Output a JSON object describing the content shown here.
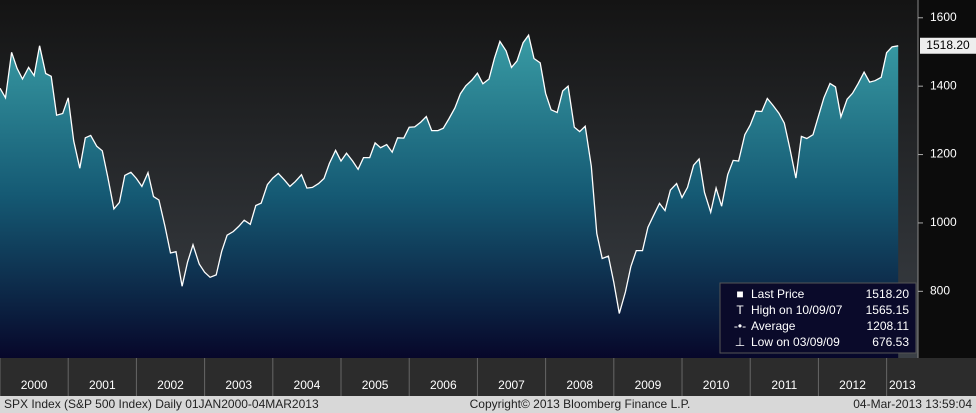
{
  "chart_data": {
    "type": "area",
    "footer": {
      "left": "SPX Index (S&P 500 Index)  Daily 01JAN2000-04MAR2013",
      "center": "Copyright© 2013 Bloomberg Finance L.P.",
      "right": "04-Mar-2013 13:59:04"
    },
    "stats": [
      {
        "label": "Last Price",
        "value": "1518.20"
      },
      {
        "label": "High on 10/09/07",
        "value": "1565.15"
      },
      {
        "label": "Average",
        "value": "1208.11"
      },
      {
        "label": "Low on 03/09/09",
        "value": "676.53"
      }
    ],
    "xlim": [
      2000,
      2013.46
    ],
    "xticks": [
      2000,
      2001,
      2002,
      2003,
      2004,
      2005,
      2006,
      2007,
      2008,
      2009,
      2010,
      2011,
      2012,
      2013
    ],
    "ylim": [
      605,
      1652
    ],
    "yticks": [
      800,
      1000,
      1200,
      1400,
      1600
    ],
    "grid": false,
    "series": [
      {
        "color": "#ffffff",
        "x": [
          2000,
          2000.08,
          2000.17,
          2000.25,
          2000.33,
          2000.42,
          2000.5,
          2000.58,
          2000.67,
          2000.75,
          2000.83,
          2000.92,
          2001,
          2001.08,
          2001.17,
          2001.25,
          2001.33,
          2001.42,
          2001.5,
          2001.58,
          2001.67,
          2001.75,
          2001.83,
          2001.92,
          2002,
          2002.08,
          2002.17,
          2002.25,
          2002.33,
          2002.42,
          2002.5,
          2002.58,
          2002.67,
          2002.75,
          2002.83,
          2002.92,
          2003,
          2003.08,
          2003.17,
          2003.25,
          2003.33,
          2003.42,
          2003.5,
          2003.58,
          2003.67,
          2003.75,
          2003.83,
          2003.92,
          2004,
          2004.08,
          2004.17,
          2004.25,
          2004.33,
          2004.42,
          2004.5,
          2004.58,
          2004.67,
          2004.75,
          2004.83,
          2004.92,
          2005,
          2005.08,
          2005.17,
          2005.25,
          2005.33,
          2005.42,
          2005.5,
          2005.58,
          2005.67,
          2005.75,
          2005.83,
          2005.92,
          2006,
          2006.08,
          2006.17,
          2006.25,
          2006.33,
          2006.42,
          2006.5,
          2006.58,
          2006.67,
          2006.75,
          2006.83,
          2006.92,
          2007,
          2007.08,
          2007.17,
          2007.25,
          2007.33,
          2007.42,
          2007.5,
          2007.58,
          2007.67,
          2007.75,
          2007.83,
          2007.92,
          2008,
          2008.08,
          2008.17,
          2008.25,
          2008.33,
          2008.42,
          2008.5,
          2008.58,
          2008.67,
          2008.75,
          2008.83,
          2008.92,
          2009,
          2009.08,
          2009.17,
          2009.25,
          2009.33,
          2009.42,
          2009.5,
          2009.58,
          2009.67,
          2009.75,
          2009.83,
          2009.92,
          2010,
          2010.08,
          2010.17,
          2010.25,
          2010.33,
          2010.42,
          2010.5,
          2010.58,
          2010.67,
          2010.75,
          2010.83,
          2010.92,
          2011,
          2011.08,
          2011.17,
          2011.25,
          2011.33,
          2011.42,
          2011.5,
          2011.58,
          2011.67,
          2011.75,
          2011.83,
          2011.92,
          2012,
          2012.08,
          2012.17,
          2012.25,
          2012.33,
          2012.42,
          2012.5,
          2012.58,
          2012.67,
          2012.75,
          2012.83,
          2012.92,
          2013,
          2013.08,
          2013.17
        ],
        "values": [
          1394,
          1366,
          1499,
          1452,
          1421,
          1455,
          1431,
          1518,
          1437,
          1429,
          1315,
          1320,
          1366,
          1240,
          1160,
          1249,
          1256,
          1224,
          1211,
          1134,
          1041,
          1060,
          1139,
          1148,
          1130,
          1107,
          1147,
          1077,
          1067,
          990,
          912,
          916,
          815,
          886,
          936,
          880,
          856,
          841,
          848,
          917,
          964,
          975,
          990,
          1008,
          996,
          1051,
          1058,
          1112,
          1131,
          1145,
          1126,
          1107,
          1121,
          1141,
          1102,
          1104,
          1115,
          1130,
          1174,
          1212,
          1181,
          1204,
          1181,
          1157,
          1191,
          1191,
          1234,
          1220,
          1229,
          1207,
          1249,
          1248,
          1280,
          1281,
          1295,
          1311,
          1270,
          1270,
          1277,
          1304,
          1336,
          1378,
          1401,
          1418,
          1438,
          1407,
          1421,
          1482,
          1531,
          1503,
          1455,
          1474,
          1527,
          1549,
          1481,
          1468,
          1379,
          1331,
          1323,
          1386,
          1400,
          1280,
          1267,
          1283,
          1166,
          969,
          896,
          903,
          826,
          735,
          798,
          873,
          919,
          919,
          987,
          1021,
          1057,
          1036,
          1096,
          1115,
          1074,
          1104,
          1169,
          1187,
          1089,
          1031,
          1102,
          1049,
          1141,
          1183,
          1181,
          1258,
          1286,
          1327,
          1326,
          1364,
          1345,
          1321,
          1292,
          1219,
          1131,
          1253,
          1247,
          1258,
          1312,
          1366,
          1408,
          1398,
          1310,
          1362,
          1379,
          1407,
          1441,
          1412,
          1416,
          1426,
          1498,
          1515,
          1518.2
        ]
      }
    ]
  }
}
